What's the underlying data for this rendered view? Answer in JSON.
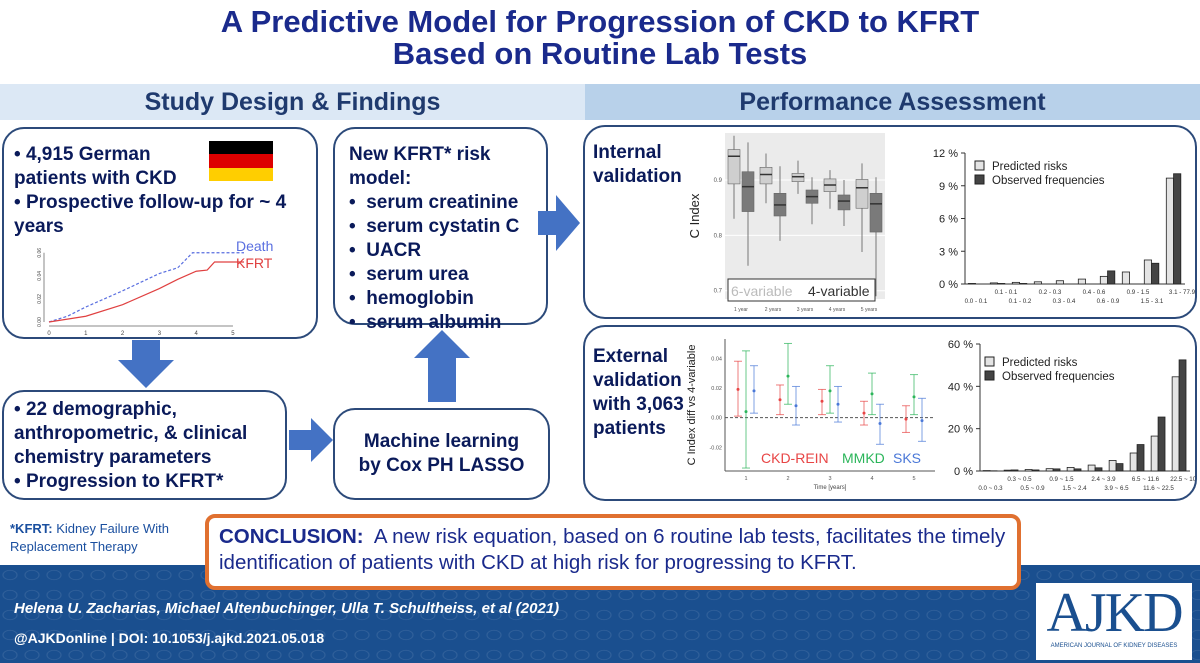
{
  "title": {
    "line1": "A Predictive Model for Progression of CKD to KFRT",
    "line2": "Based on Routine Lab Tests"
  },
  "sections": {
    "left": "Study Design & Findings",
    "right": "Performance Assessment"
  },
  "cohort": {
    "items": [
      "4,915 German patients with CKD",
      "Prospective follow-up for ~ 4 years"
    ],
    "flag_colors": [
      "#000000",
      "#dd0000",
      "#ffce00"
    ]
  },
  "params": {
    "items": [
      "22 demographic, anthropometric, & clinical chemistry parameters",
      "Progression to KFRT*"
    ]
  },
  "ml": {
    "text": "Machine learning by Cox PH LASSO"
  },
  "model": {
    "heading": "New KFRT* risk model:",
    "items": [
      "serum creatinine",
      "serum cystatin C",
      "UACR",
      "serum urea",
      "hemoglobin",
      "serum albumin"
    ]
  },
  "internal": {
    "label": "Internal validation"
  },
  "external": {
    "label": "External validation with 3,063 patients"
  },
  "footnote": {
    "term": "*KFRT:",
    "def": "Kidney Failure With Replacement Therapy"
  },
  "conclusion": {
    "label": "CONCLUSION:",
    "text": "A new risk equation, based on 6 routine lab tests, facilitates the timely identification of patients with CKD at high risk for progressing to KFRT."
  },
  "citation": {
    "authors": "Helena U. Zacharias, Michael Altenbuchinger, Ulla T. Schultheiss, et al  (2021)",
    "doi": "@AJKDonline | DOI: 10.1053/j.ajkd.2021.05.018"
  },
  "logo": {
    "text": "AJKD",
    "sub": "AMERICAN JOURNAL OF KIDNEY DISEASES"
  },
  "colors": {
    "accent": "#4472c4",
    "border": "#2c4a7a",
    "conclusion_border": "#e07030",
    "band": "#1a4f8f"
  },
  "chart_data": [
    {
      "id": "km",
      "type": "line",
      "xlabel": "Time [years]",
      "xticks": [
        0,
        1,
        2,
        3,
        4,
        5
      ],
      "yticks": [
        "0.00",
        "0.02",
        "0.04",
        "0.06"
      ],
      "xlim": [
        0,
        5.3
      ],
      "ylim": [
        0,
        0.065
      ],
      "series": [
        {
          "name": "Death",
          "color": "#5a6fe0",
          "dashed": true,
          "points": [
            [
              0,
              0
            ],
            [
              0.5,
              0.005
            ],
            [
              1,
              0.013
            ],
            [
              2,
              0.027
            ],
            [
              3,
              0.042
            ],
            [
              3.5,
              0.047
            ],
            [
              3.9,
              0.06
            ],
            [
              5.3,
              0.06
            ]
          ]
        },
        {
          "name": "KFRT",
          "color": "#e04040",
          "points": [
            [
              0,
              0
            ],
            [
              1,
              0.005
            ],
            [
              2,
              0.015
            ],
            [
              3,
              0.029
            ],
            [
              3.5,
              0.037
            ],
            [
              4,
              0.044
            ],
            [
              4.3,
              0.045
            ],
            [
              4.5,
              0.052
            ],
            [
              5.3,
              0.052
            ]
          ]
        }
      ]
    },
    {
      "id": "box",
      "type": "box",
      "ylabel": "C Index",
      "categories": [
        "1 year",
        "2 years",
        "3 years",
        "4 years",
        "5 years"
      ],
      "yticks": [
        "0.7",
        "0.8",
        "0.9"
      ],
      "ylim": [
        0.685,
        0.985
      ],
      "series": [
        {
          "name": "6-variable",
          "color": "#cfcfcf",
          "stats": [
            [
              0.83,
              0.893,
              0.943,
              0.955,
              0.98
            ],
            [
              0.858,
              0.893,
              0.91,
              0.923,
              0.948
            ],
            [
              0.875,
              0.897,
              0.906,
              0.912,
              0.935
            ],
            [
              0.848,
              0.879,
              0.891,
              0.902,
              0.918
            ],
            [
              0.77,
              0.849,
              0.886,
              0.901,
              0.93
            ]
          ]
        },
        {
          "name": "4-variable",
          "color": "#7a7a7a",
          "stats": [
            [
              0.745,
              0.843,
              0.888,
              0.915,
              0.968
            ],
            [
              0.79,
              0.835,
              0.855,
              0.876,
              0.925
            ],
            [
              0.82,
              0.858,
              0.87,
              0.882,
              0.905
            ],
            [
              0.817,
              0.846,
              0.862,
              0.873,
              0.9
            ],
            [
              0.69,
              0.806,
              0.857,
              0.876,
              0.905
            ]
          ]
        }
      ]
    },
    {
      "id": "intbar",
      "type": "bar",
      "yticks": [
        "0 %",
        "3 %",
        "6 %",
        "9 %",
        "12 %"
      ],
      "ylim": [
        0,
        12
      ],
      "categories": [
        "0.0 - 0.1",
        "0.1 - 0.1",
        "0.1 - 0.2",
        "0.2 - 0.3",
        "0.3 - 0.4",
        "0.4 - 0.6",
        "0.6 - 0.9",
        "0.9 - 1.5",
        "1.5 - 3.1",
        "3.1 - 77.9"
      ],
      "series": [
        {
          "name": "Predicted risks",
          "values": [
            0.05,
            0.1,
            0.15,
            0.2,
            0.3,
            0.45,
            0.7,
            1.1,
            2.2,
            9.7
          ]
        },
        {
          "name": "Observed frequencies",
          "values": [
            0,
            0.05,
            0.05,
            0,
            0,
            0,
            1.2,
            0,
            1.9,
            10.1
          ]
        }
      ]
    },
    {
      "id": "err",
      "type": "errorbar",
      "ylabel": "C Index diff vs 4-variable",
      "xlabel": "Time [years]",
      "xticks": [
        1,
        2,
        3,
        4,
        5
      ],
      "yticks": [
        "-0.02",
        "0.00",
        "0.02",
        "0.04"
      ],
      "ylim": [
        -0.036,
        0.053
      ],
      "series": [
        {
          "name": "CKD-REIN",
          "color": "#e84545",
          "points": [
            [
              0.019,
              0.001,
              0.038
            ],
            [
              0.012,
              0.002,
              0.022
            ],
            [
              0.011,
              0.002,
              0.019
            ],
            [
              0.003,
              -0.005,
              0.011
            ],
            [
              -0.001,
              -0.01,
              0.008
            ]
          ]
        },
        {
          "name": "MMKD",
          "color": "#2bb55a",
          "points": [
            [
              0.004,
              -0.034,
              0.045
            ],
            [
              0.028,
              0.009,
              0.05
            ],
            [
              0.018,
              0.003,
              0.035
            ],
            [
              0.016,
              0.002,
              0.03
            ],
            [
              0.014,
              0.002,
              0.029
            ]
          ]
        },
        {
          "name": "SKS",
          "color": "#4a78d8",
          "points": [
            [
              0.018,
              0.003,
              0.035
            ],
            [
              0.008,
              -0.005,
              0.021
            ],
            [
              0.009,
              -0.003,
              0.021
            ],
            [
              -0.004,
              -0.018,
              0.009
            ],
            [
              -0.002,
              -0.016,
              0.013
            ]
          ]
        }
      ]
    },
    {
      "id": "extbar",
      "type": "bar",
      "yticks": [
        "0 %",
        "20 %",
        "40 %",
        "60 %"
      ],
      "ylim": [
        0,
        60
      ],
      "categories": [
        "0.0 ~ 0.3",
        "0.3 ~ 0.5",
        "0.5 ~ 0.9",
        "0.9 ~ 1.5",
        "1.5 ~ 2.4",
        "2.4 ~ 3.9",
        "3.9 ~ 6.5",
        "6.5 ~ 11.6",
        "11.6 ~ 22.5",
        "22.5 ~ 100.0"
      ],
      "series": [
        {
          "name": "Predicted risks",
          "values": [
            0.2,
            0.4,
            0.7,
            1.1,
            1.7,
            2.8,
            5,
            8.5,
            16.5,
            44.5
          ]
        },
        {
          "name": "Observed frequencies",
          "values": [
            0.1,
            0.5,
            0.5,
            1.0,
            1.0,
            1.5,
            3.5,
            12.5,
            25.5,
            52.5
          ]
        }
      ]
    }
  ]
}
